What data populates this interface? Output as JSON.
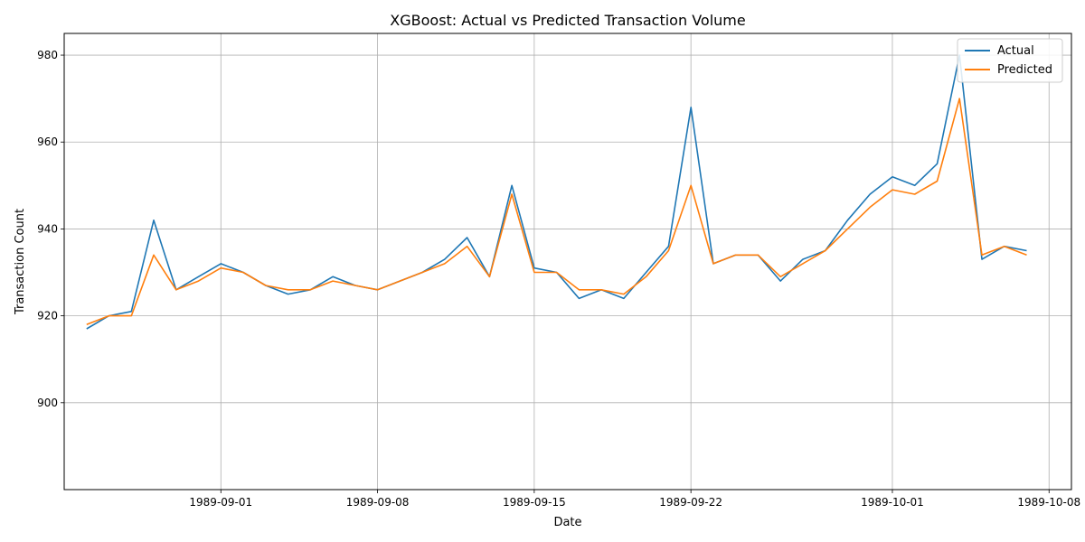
{
  "chart_data": {
    "type": "line",
    "title": "XGBoost: Actual vs Predicted Transaction Volume",
    "xlabel": "Date",
    "ylabel": "Transaction Count",
    "xlim": [
      "1989-08-25",
      "1989-10-09"
    ],
    "ylim": [
      880,
      985
    ],
    "grid": true,
    "legend_position": "top-right",
    "x_ticks": [
      "1989-09-01",
      "1989-09-08",
      "1989-09-15",
      "1989-09-22",
      "1989-10-01",
      "1989-10-08"
    ],
    "y_ticks": [
      900,
      920,
      940,
      960,
      980
    ],
    "x": [
      "1989-08-26",
      "1989-08-27",
      "1989-08-28",
      "1989-08-29",
      "1989-08-30",
      "1989-08-31",
      "1989-09-01",
      "1989-09-02",
      "1989-09-03",
      "1989-09-04",
      "1989-09-05",
      "1989-09-06",
      "1989-09-07",
      "1989-09-08",
      "1989-09-09",
      "1989-09-10",
      "1989-09-11",
      "1989-09-12",
      "1989-09-13",
      "1989-09-14",
      "1989-09-15",
      "1989-09-16",
      "1989-09-17",
      "1989-09-18",
      "1989-09-19",
      "1989-09-20",
      "1989-09-21",
      "1989-09-22",
      "1989-09-23",
      "1989-09-24",
      "1989-09-25",
      "1989-09-26",
      "1989-09-27",
      "1989-09-28",
      "1989-09-29",
      "1989-09-30",
      "1989-10-01",
      "1989-10-02",
      "1989-10-03",
      "1989-10-04",
      "1989-10-05",
      "1989-10-06",
      "1989-10-07"
    ],
    "series": [
      {
        "name": "Actual",
        "color": "#1f77b4",
        "values": [
          917,
          920,
          921,
          942,
          926,
          929,
          932,
          930,
          927,
          925,
          926,
          929,
          927,
          926,
          928,
          930,
          933,
          938,
          929,
          950,
          931,
          930,
          924,
          926,
          924,
          930,
          936,
          968,
          932,
          934,
          934,
          928,
          933,
          935,
          942,
          948,
          952,
          950,
          955,
          980,
          933,
          936,
          935
        ]
      },
      {
        "name": "Predicted",
        "color": "#ff7f0e",
        "values": [
          918,
          920,
          920,
          934,
          926,
          928,
          931,
          930,
          927,
          926,
          926,
          928,
          927,
          926,
          928,
          930,
          932,
          936,
          929,
          948,
          930,
          930,
          926,
          926,
          925,
          929,
          935,
          950,
          932,
          934,
          934,
          929,
          932,
          935,
          940,
          945,
          949,
          948,
          951,
          970,
          934,
          936,
          934
        ]
      }
    ]
  }
}
